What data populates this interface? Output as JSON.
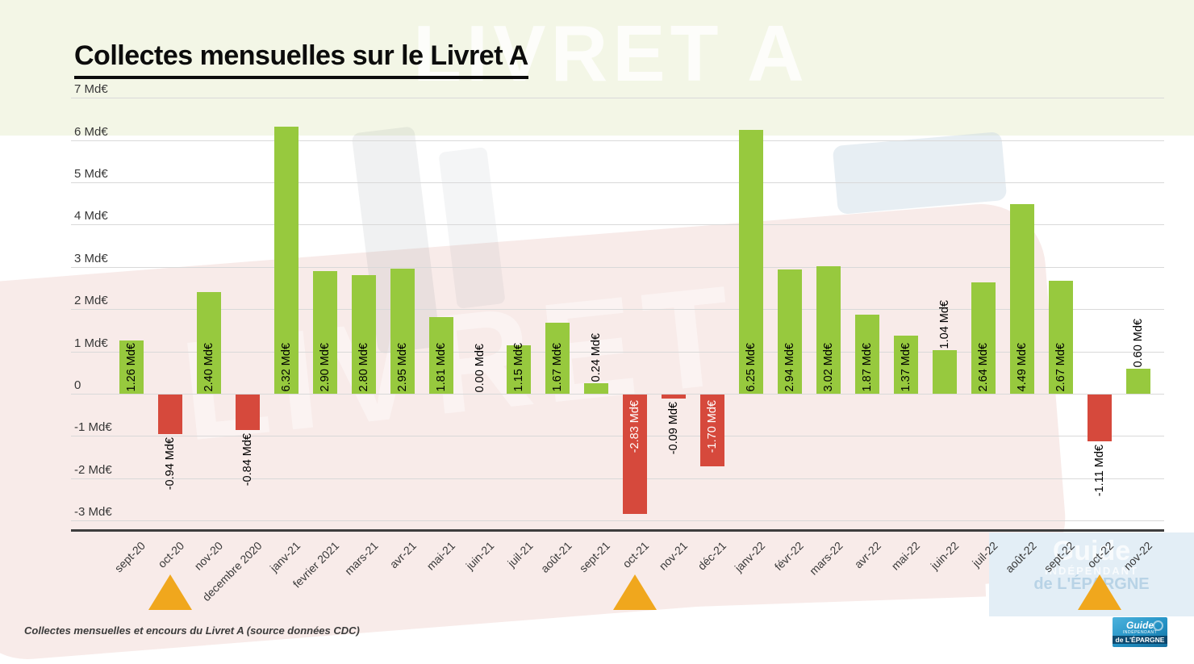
{
  "page": {
    "title": "Collectes mensuelles sur le Livret A",
    "caption": "Collectes mensuelles et encours du Livret A (source données CDC)"
  },
  "watermarks": {
    "top_text": "LIVRET A",
    "diagonal_text": "LIVRET"
  },
  "logo": {
    "line1": "Guide",
    "line2": "INDÉPENDANT",
    "line3": "de L'ÉPARGNE"
  },
  "chart_data": {
    "type": "bar",
    "title": "Collectes mensuelles sur le Livret A",
    "unit": "Md€",
    "xlabel": "",
    "ylabel": "",
    "ylim": [
      -3.25,
      7
    ],
    "grid": true,
    "legend": "none",
    "categories": [
      "sept-20",
      "oct-20",
      "nov-20",
      "decembre 2020",
      "janv-21",
      "fevrier 2021",
      "mars-21",
      "avr-21",
      "mai-21",
      "juin-21",
      "juil-21",
      "août-21",
      "sept-21",
      "oct-21",
      "nov-21",
      "déc-21",
      "janv-22",
      "févr-22",
      "mars-22",
      "avr-22",
      "mai-22",
      "juin-22",
      "juil-22",
      "août-22",
      "sept-22",
      "oct-22",
      "nov-22"
    ],
    "values": [
      1.26,
      -0.94,
      2.4,
      -0.84,
      6.32,
      2.9,
      2.8,
      2.95,
      1.81,
      0.0,
      1.15,
      1.67,
      0.24,
      -2.83,
      -0.09,
      -1.7,
      6.25,
      2.94,
      3.02,
      1.87,
      1.37,
      1.04,
      2.64,
      4.49,
      2.67,
      -1.11,
      0.6
    ],
    "labels": [
      "1.26 Md€",
      "-0.94 Md€",
      "2.40 Md€",
      "-0.84 Md€",
      "6.32 Md€",
      "2.90 Md€",
      "2.80 Md€",
      "2.95 Md€",
      "1.81 Md€",
      "0.00 Md€",
      "1.15 Md€",
      "1.67 Md€",
      "0.24 Md€",
      "-2.83 Md€",
      "-0.09 Md€",
      "-1.70 Md€",
      "6.25 Md€",
      "2.94 Md€",
      "3.02 Md€",
      "1.87 Md€",
      "1.37 Md€",
      "1.04 Md€",
      "2.64 Md€",
      "4.49 Md€",
      "2.67 Md€",
      "-1.11 Md€",
      "0.60 Md€"
    ],
    "y_axis": [
      {
        "label": "7 Md€",
        "value": 7
      },
      {
        "label": "6 Md€",
        "value": 6
      },
      {
        "label": "5 Md€",
        "value": 5
      },
      {
        "label": "4 Md€",
        "value": 4
      },
      {
        "label": "3 Md€",
        "value": 3
      },
      {
        "label": "2 Md€",
        "value": 2
      },
      {
        "label": "1 Md€",
        "value": 1
      },
      {
        "label": "0",
        "value": 0
      },
      {
        "label": "-1 Md€",
        "value": -1
      },
      {
        "label": "-2 Md€",
        "value": -2
      },
      {
        "label": "-3 Md€",
        "value": -3
      }
    ],
    "markers": [
      "oct-20",
      "oct-21",
      "oct-22"
    ],
    "colors": {
      "positive_bar": "#97c93e",
      "negative_bar": "#d6493c",
      "marker_triangle": "#f0a71d",
      "gridline": "#d9d9d9",
      "axis_line": "#3e3e3e",
      "label_inside_negative": "#ffffff",
      "label_default": "#000000"
    }
  }
}
